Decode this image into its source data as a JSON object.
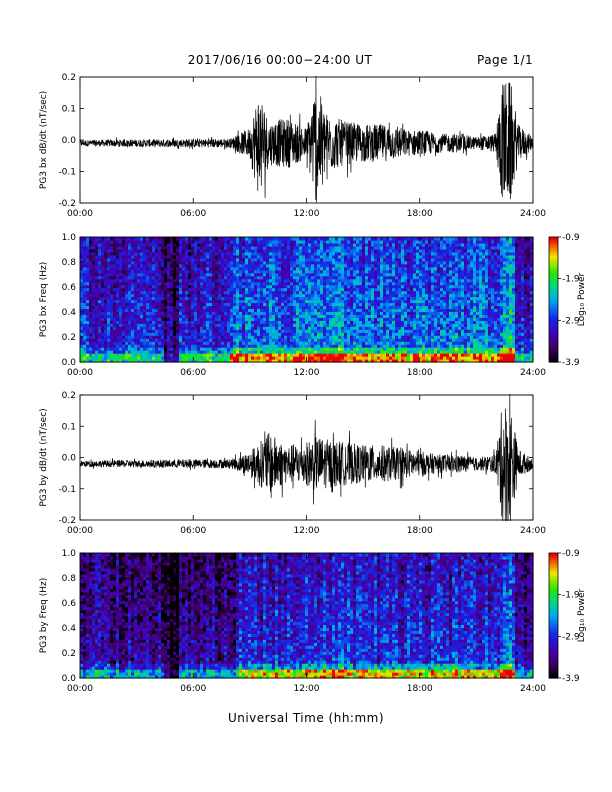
{
  "header": {
    "title": "2017/06/16  00:00−24:00 UT",
    "page": "Page 1/1"
  },
  "xaxis_label": "Universal Time (hh:mm)",
  "chart_data": [
    {
      "type": "line",
      "panel": "bx-dbdt",
      "ylabel": "PG3 bx dB/dt (nT/sec)",
      "x_tick_labels": [
        "00:00",
        "06:00",
        "12:00",
        "18:00",
        "24:00"
      ],
      "xlim": [
        0,
        24
      ],
      "ylim": [
        -0.2,
        0.2
      ],
      "y_tick_labels": [
        "-0.2",
        "-0.1",
        "0.0",
        "0.1",
        "0.2"
      ],
      "series": [
        {
          "x_hours": [
            0,
            8,
            9,
            9.5,
            10,
            11,
            12,
            12.5,
            13,
            14,
            15,
            16,
            17,
            17.5,
            18,
            19,
            20,
            21,
            22,
            22.4,
            22.8,
            23.2,
            24
          ],
          "envelope_amplitude": [
            0.01,
            0.015,
            0.05,
            0.18,
            0.07,
            0.08,
            0.05,
            0.2,
            0.1,
            0.07,
            0.06,
            0.06,
            0.05,
            0.04,
            0.045,
            0.03,
            0.03,
            0.02,
            0.03,
            0.2,
            0.2,
            0.06,
            0.02
          ],
          "offset": -0.01
        }
      ]
    },
    {
      "type": "heatmap",
      "panel": "bx-spectrogram",
      "ylabel": "PG3 bx Freq (Hz)",
      "x_tick_labels": [
        "00:00",
        "06:00",
        "12:00",
        "18:00",
        "24:00"
      ],
      "xlim": [
        0,
        24
      ],
      "ylim": [
        0.0,
        1.0
      ],
      "y_tick_labels": [
        "0.0",
        "0.2",
        "0.4",
        "0.6",
        "0.8",
        "1.0"
      ],
      "colorbar": {
        "label": "Log₁₀ Power",
        "range": [
          -3.9,
          -0.9
        ],
        "tick_labels": [
          "-0.9",
          "-1.9",
          "-2.9",
          "-3.9"
        ]
      },
      "background_level": -2.9,
      "activity_hours": [
        8.0,
        23.0
      ]
    },
    {
      "type": "line",
      "panel": "by-dbdt",
      "ylabel": "PG3 by dB/dt (nT/sec)",
      "x_tick_labels": [
        "00:00",
        "06:00",
        "12:00",
        "18:00",
        "24:00"
      ],
      "xlim": [
        0,
        24
      ],
      "ylim": [
        -0.2,
        0.2
      ],
      "y_tick_labels": [
        "-0.2",
        "-0.1",
        "0.0",
        "0.1",
        "0.2"
      ],
      "series": [
        {
          "x_hours": [
            0,
            8,
            9,
            10,
            11,
            12,
            12.5,
            13,
            14,
            15,
            16,
            17,
            18,
            19,
            20,
            21,
            22,
            22.4,
            22.8,
            23.2,
            24
          ],
          "envelope_amplitude": [
            0.01,
            0.015,
            0.04,
            0.1,
            0.06,
            0.07,
            0.09,
            0.08,
            0.07,
            0.06,
            0.06,
            0.05,
            0.04,
            0.03,
            0.03,
            0.02,
            0.03,
            0.2,
            0.2,
            0.05,
            0.015
          ],
          "offset": -0.02
        }
      ]
    },
    {
      "type": "heatmap",
      "panel": "by-spectrogram",
      "ylabel": "PG3 by Freq (Hz)",
      "x_tick_labels": [
        "00:00",
        "06:00",
        "12:00",
        "18:00",
        "24:00"
      ],
      "xlim": [
        0,
        24
      ],
      "ylim": [
        0.0,
        1.0
      ],
      "y_tick_labels": [
        "0.0",
        "0.2",
        "0.4",
        "0.6",
        "0.8",
        "1.0"
      ],
      "colorbar": {
        "label": "Log₁₀ Power",
        "range": [
          -3.9,
          -0.9
        ],
        "tick_labels": [
          "-0.9",
          "-1.9",
          "-2.9",
          "-3.9"
        ]
      },
      "background_level": -3.2,
      "activity_hours": [
        8.5,
        23.0
      ]
    }
  ]
}
